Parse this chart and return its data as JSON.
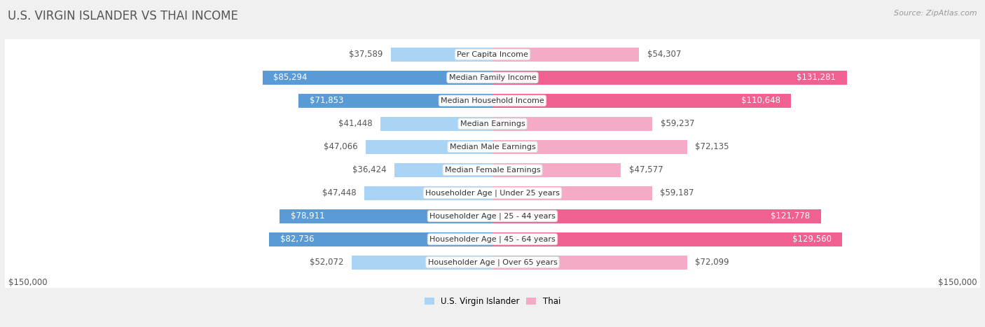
{
  "title": "U.S. VIRGIN ISLANDER VS THAI INCOME",
  "source": "Source: ZipAtlas.com",
  "categories": [
    "Per Capita Income",
    "Median Family Income",
    "Median Household Income",
    "Median Earnings",
    "Median Male Earnings",
    "Median Female Earnings",
    "Householder Age | Under 25 years",
    "Householder Age | 25 - 44 years",
    "Householder Age | 45 - 64 years",
    "Householder Age | Over 65 years"
  ],
  "usvi_values": [
    37589,
    85294,
    71853,
    41448,
    47066,
    36424,
    47448,
    78911,
    82736,
    52072
  ],
  "thai_values": [
    54307,
    131281,
    110648,
    59237,
    72135,
    47577,
    59187,
    121778,
    129560,
    72099
  ],
  "usvi_labels": [
    "$37,589",
    "$85,294",
    "$71,853",
    "$41,448",
    "$47,066",
    "$36,424",
    "$47,448",
    "$78,911",
    "$82,736",
    "$52,072"
  ],
  "thai_labels": [
    "$54,307",
    "$131,281",
    "$110,648",
    "$59,237",
    "$72,135",
    "$47,577",
    "$59,187",
    "$121,778",
    "$129,560",
    "$72,099"
  ],
  "usvi_color_light": "#aad4f5",
  "usvi_color_dark": "#5b9bd5",
  "thai_color_light": "#f5aac8",
  "thai_color_dark": "#f06090",
  "max_value": 150000,
  "legend_usvi": "U.S. Virgin Islander",
  "legend_thai": "Thai",
  "background_color": "#f0f0f0",
  "row_bg_color": "#ffffff",
  "title_fontsize": 12,
  "source_fontsize": 8,
  "label_fontsize": 8.5,
  "category_fontsize": 8,
  "usvi_threshold": 60000,
  "thai_threshold": 100000
}
